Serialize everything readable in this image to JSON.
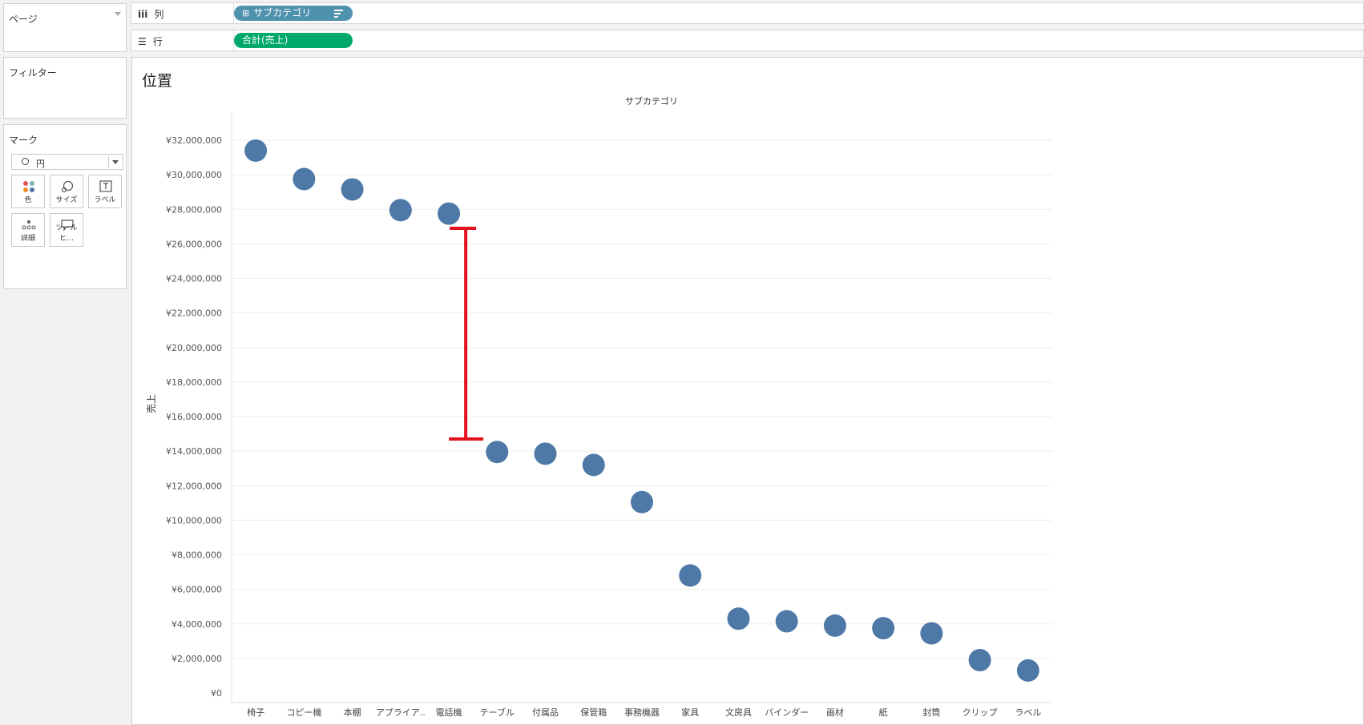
{
  "shelves": {
    "pages_label": "ページ",
    "filters_label": "フィルター",
    "marks_label": "マーク",
    "columns_label": "列",
    "rows_label": "行",
    "column_pill": "サブカテゴリ",
    "row_pill": "合計(売上)"
  },
  "marks": {
    "type": "円",
    "buttons": [
      "色",
      "サイズ",
      "ラベル",
      "詳細",
      "ツールヒ…"
    ]
  },
  "colors": {
    "point": "#4e79a7",
    "annotation": "#e3101e",
    "column_pill": "#4f92ad",
    "row_pill": "#00a86b"
  },
  "sheet": {
    "title": "位置"
  },
  "chart_data": {
    "type": "scatter",
    "title": "サブカテゴリ",
    "xlabel": "",
    "ylabel": "売上",
    "ylim": [
      0,
      32000000
    ],
    "yticks": [
      "¥0",
      "¥2,000,000",
      "¥4,000,000",
      "¥6,000,000",
      "¥8,000,000",
      "¥10,000,000",
      "¥12,000,000",
      "¥14,000,000",
      "¥16,000,000",
      "¥18,000,000",
      "¥20,000,000",
      "¥22,000,000",
      "¥24,000,000",
      "¥26,000,000",
      "¥28,000,000",
      "¥30,000,000",
      "¥32,000,000"
    ],
    "categories": [
      "椅子",
      "コピー機",
      "本棚",
      "アプライア..",
      "電話機",
      "テーブル",
      "付属品",
      "保管箱",
      "事務機器",
      "家具",
      "文房具",
      "バインダー",
      "画材",
      "紙",
      "封筒",
      "クリップ",
      "ラベル"
    ],
    "values": [
      31400000,
      29750000,
      29150000,
      27950000,
      27750000,
      13950000,
      13850000,
      13200000,
      11050000,
      6800000,
      4300000,
      4150000,
      3900000,
      3750000,
      3450000,
      1900000,
      1300000
    ],
    "grid": true,
    "annotation": {
      "type": "gap-bracket",
      "from_value": 26900000,
      "to_value": 14700000
    }
  }
}
